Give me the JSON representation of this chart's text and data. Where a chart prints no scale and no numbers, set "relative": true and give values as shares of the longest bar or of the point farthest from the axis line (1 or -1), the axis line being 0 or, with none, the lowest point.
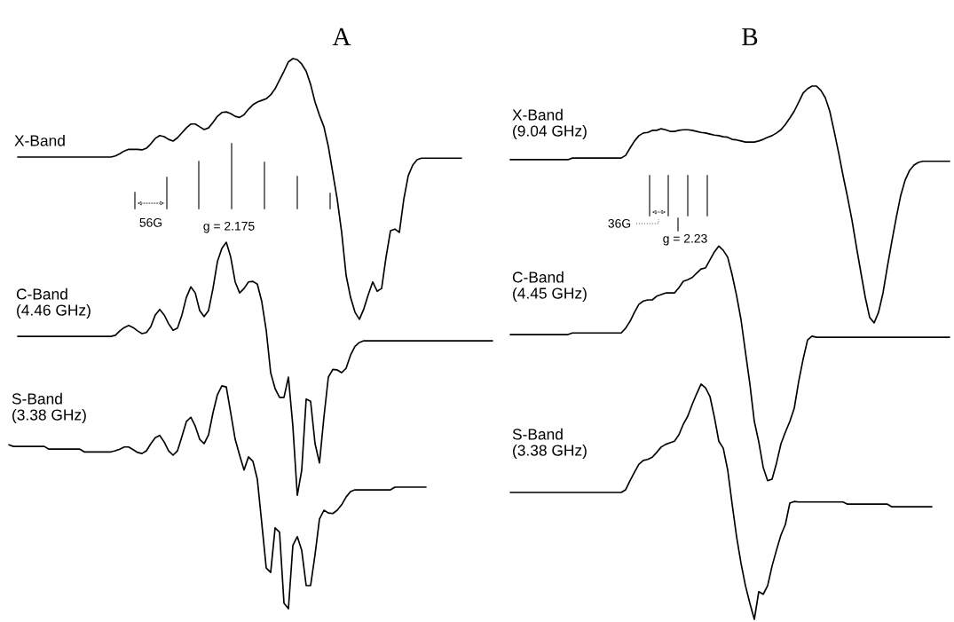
{
  "chart_data": [
    {
      "type": "line",
      "title": "A",
      "relative": true,
      "categories": [
        null,
        null,
        null,
        null,
        null,
        null,
        null,
        null,
        null,
        null,
        null,
        null,
        null,
        null,
        null,
        null,
        null,
        null,
        null,
        null,
        null,
        null,
        null,
        null,
        null,
        null,
        null,
        null,
        null,
        null,
        null,
        null,
        null,
        null,
        null,
        null,
        null,
        null,
        null,
        null,
        null,
        null,
        null,
        null,
        null,
        null,
        null,
        null,
        null,
        null,
        null,
        null,
        null,
        null,
        null,
        null,
        null,
        null,
        null,
        null,
        null,
        null,
        null,
        null,
        null,
        null,
        null,
        null,
        null,
        null,
        null,
        null,
        null,
        null,
        null,
        null,
        null,
        null,
        null,
        null,
        null,
        null,
        null,
        null,
        null,
        null,
        null,
        null,
        null,
        null,
        null,
        null,
        null,
        null,
        null,
        null,
        null,
        null,
        null,
        null,
        null,
        null,
        null,
        null,
        null,
        null,
        null,
        null,
        null,
        null
      ],
      "series": [
        {
          "name": "X-Band",
          "color": "#000000",
          "values": [
            null,
            null,
            0.821,
            0.821,
            0.821,
            0.821,
            0.821,
            0.821,
            0.821,
            0.821,
            0.821,
            0.821,
            0.821,
            0.821,
            0.821,
            0.821,
            0.821,
            0.821,
            0.821,
            0.821,
            0.821,
            0.821,
            0.821,
            0.821,
            0.823,
            0.827,
            0.832,
            0.835,
            0.835,
            0.835,
            0.834,
            0.837,
            0.845,
            0.855,
            0.86,
            0.858,
            0.853,
            0.85,
            0.856,
            0.865,
            0.874,
            0.881,
            0.881,
            0.876,
            0.871,
            0.874,
            0.884,
            0.895,
            0.902,
            0.903,
            0.9,
            0.895,
            0.893,
            0.898,
            0.908,
            0.916,
            0.921,
            0.924,
            0.927,
            0.934,
            0.945,
            0.961,
            0.977,
            0.994,
            1.0,
            0.998,
            0.99,
            0.977,
            0.953,
            0.921,
            0.897,
            0.876,
            0.84,
            0.792,
            0.744,
            0.684,
            0.606,
            0.566,
            0.539,
            0.526,
            0.545,
            0.571,
            0.594,
            0.577,
            0.582,
            0.639,
            0.687,
            0.69,
            0.684,
            0.744,
            0.787,
            0.806,
            0.816,
            0.819,
            0.819,
            0.819,
            0.819,
            0.819,
            0.819,
            0.819,
            0.819,
            0.819,
            0.819,
            null,
            null,
            null,
            null,
            null,
            null,
            null
          ]
        },
        {
          "name": "C-Band\n(4.46 GHz)",
          "color": "#000000",
          "values": [
            null,
            null,
            0.495,
            0.495,
            0.495,
            0.495,
            0.495,
            0.495,
            0.495,
            0.495,
            0.495,
            0.495,
            0.495,
            0.495,
            0.495,
            0.495,
            0.495,
            0.495,
            0.495,
            0.495,
            0.495,
            0.495,
            0.495,
            0.495,
            0.497,
            0.505,
            0.511,
            0.515,
            0.511,
            0.505,
            0.5,
            0.502,
            0.513,
            0.534,
            0.544,
            0.534,
            0.518,
            0.506,
            0.51,
            0.534,
            0.566,
            0.585,
            0.574,
            0.542,
            0.531,
            0.542,
            0.582,
            0.631,
            0.655,
            0.666,
            0.639,
            0.594,
            0.574,
            0.582,
            0.594,
            0.595,
            0.59,
            0.558,
            0.506,
            0.429,
            0.4,
            0.384,
            0.384,
            0.421,
            0.332,
            0.206,
            0.252,
            0.381,
            0.377,
            0.3,
            0.265,
            0.348,
            0.421,
            0.435,
            0.434,
            0.429,
            0.437,
            0.461,
            0.477,
            0.484,
            0.487,
            0.487,
            0.487,
            0.487,
            0.487,
            0.487,
            0.487,
            0.487,
            0.487,
            0.487,
            0.487,
            0.487,
            0.487,
            0.487,
            0.487,
            0.487,
            0.487,
            0.487,
            0.487,
            0.487,
            0.487,
            0.487,
            0.487,
            0.487,
            0.487,
            0.487,
            0.487,
            0.487,
            0.487,
            0.487
          ]
        },
        {
          "name": "S-Band\n(3.38 GHz)",
          "color": "#000000",
          "values": [
            0.298,
            0.295,
            0.295,
            0.295,
            0.295,
            0.295,
            0.295,
            0.295,
            0.295,
            0.29,
            0.29,
            0.29,
            0.29,
            0.29,
            0.29,
            0.29,
            0.29,
            0.285,
            0.285,
            0.285,
            0.285,
            0.285,
            0.285,
            0.285,
            0.287,
            0.29,
            0.294,
            0.294,
            0.289,
            0.284,
            0.282,
            0.287,
            0.3,
            0.311,
            0.315,
            0.303,
            0.287,
            0.279,
            0.287,
            0.313,
            0.34,
            0.348,
            0.332,
            0.308,
            0.3,
            0.316,
            0.356,
            0.389,
            0.405,
            0.403,
            0.356,
            0.308,
            0.279,
            0.252,
            0.276,
            0.268,
            0.235,
            0.155,
            0.074,
            0.066,
            0.147,
            0.139,
            0.01,
            0.0,
            0.115,
            0.131,
            0.106,
            0.042,
            0.042,
            0.098,
            0.163,
            0.179,
            0.174,
            0.173,
            0.179,
            0.189,
            0.203,
            0.213,
            0.216,
            0.216,
            0.216,
            0.216,
            0.216,
            0.216,
            0.216,
            0.216,
            0.216,
            0.221,
            0.221,
            0.221,
            0.221,
            0.221,
            0.221,
            0.221,
            0.221,
            null,
            null,
            null,
            null,
            null,
            null,
            null,
            null,
            null,
            null,
            null,
            null,
            null,
            null,
            null
          ]
        }
      ],
      "annotations": [
        "56G",
        "g = 2.175"
      ]
    },
    {
      "type": "line",
      "title": "B",
      "relative": true,
      "categories": [
        null,
        null,
        null,
        null,
        null,
        null,
        null,
        null,
        null,
        null,
        null,
        null,
        null,
        null,
        null,
        null,
        null,
        null,
        null,
        null,
        null,
        null,
        null,
        null,
        null,
        null,
        null,
        null,
        null,
        null,
        null,
        null,
        null,
        null,
        null,
        null,
        null,
        null,
        null,
        null,
        null,
        null,
        null,
        null,
        null,
        null,
        null,
        null,
        null,
        null,
        null,
        null,
        null,
        null,
        null,
        null,
        null,
        null,
        null,
        null,
        null,
        null,
        null,
        null,
        null,
        null,
        null,
        null,
        null,
        null,
        null,
        null,
        null,
        null,
        null,
        null,
        null,
        null,
        null,
        null,
        null,
        null,
        null,
        null,
        null,
        null,
        null,
        null,
        null,
        null,
        null,
        null,
        null,
        null,
        null,
        null,
        null,
        null,
        null,
        null
      ],
      "series": [
        {
          "name": "X-Band\n(9.04 GHz)",
          "color": "#000000",
          "values": [
            0.862,
            0.862,
            0.862,
            0.862,
            0.862,
            0.862,
            0.862,
            0.862,
            0.862,
            0.862,
            0.862,
            0.862,
            0.862,
            0.862,
            0.865,
            0.865,
            0.865,
            0.865,
            0.865,
            0.865,
            0.865,
            0.865,
            0.865,
            0.865,
            0.865,
            0.865,
            0.87,
            0.884,
            0.897,
            0.907,
            0.912,
            0.913,
            0.917,
            0.917,
            0.92,
            0.918,
            0.915,
            0.915,
            0.917,
            0.918,
            0.918,
            0.917,
            0.915,
            0.913,
            0.912,
            0.91,
            0.908,
            0.907,
            0.905,
            0.904,
            0.9,
            0.899,
            0.897,
            0.895,
            0.895,
            0.895,
            0.897,
            0.9,
            0.904,
            0.907,
            0.912,
            0.918,
            0.928,
            0.94,
            0.953,
            0.97,
            0.987,
            0.995,
            1.0,
            1.0,
            0.992,
            0.978,
            0.953,
            0.915,
            0.875,
            0.832,
            0.792,
            0.749,
            0.699,
            0.651,
            0.604,
            0.566,
            0.556,
            0.576,
            0.612,
            0.662,
            0.709,
            0.754,
            0.795,
            0.824,
            0.842,
            0.852,
            0.857,
            0.859,
            0.859,
            0.859,
            0.859,
            0.859,
            0.859,
            0.859
          ]
        },
        {
          "name": "C-Band\n(4.45 GHz)",
          "color": "#000000",
          "values": [
            0.534,
            0.534,
            0.534,
            0.534,
            0.534,
            0.534,
            0.534,
            0.534,
            0.534,
            0.534,
            0.534,
            0.534,
            0.534,
            0.534,
            0.537,
            0.537,
            0.537,
            0.537,
            0.537,
            0.537,
            0.537,
            0.537,
            0.537,
            0.537,
            0.537,
            0.537,
            0.546,
            0.559,
            0.576,
            0.591,
            0.597,
            0.599,
            0.599,
            0.606,
            0.609,
            0.612,
            0.612,
            0.612,
            0.622,
            0.634,
            0.637,
            0.641,
            0.649,
            0.657,
            0.659,
            0.674,
            0.689,
            0.7,
            0.692,
            0.679,
            0.646,
            0.607,
            0.562,
            0.501,
            0.441,
            0.371,
            0.333,
            0.285,
            0.26,
            0.263,
            0.293,
            0.329,
            0.351,
            0.371,
            0.396,
            0.446,
            0.488,
            0.524,
            0.531,
            0.529,
            0.529,
            0.529,
            0.529,
            0.529,
            0.529,
            0.529,
            0.529,
            0.529,
            0.529,
            0.529,
            0.529,
            0.529,
            0.529,
            0.529,
            0.529,
            0.529,
            0.529,
            0.529,
            0.529,
            0.529,
            0.529,
            0.529,
            0.529,
            0.529,
            0.529,
            0.529,
            0.529,
            0.529,
            0.529,
            0.529
          ]
        },
        {
          "name": "S-Band\n(3.38 GHz)",
          "color": "#000000",
          "values": [
            0.238,
            0.238,
            0.238,
            0.238,
            0.238,
            0.238,
            0.238,
            0.238,
            0.238,
            0.238,
            0.238,
            0.238,
            0.238,
            0.238,
            0.238,
            0.238,
            0.238,
            0.238,
            0.238,
            0.238,
            0.238,
            0.238,
            0.238,
            0.238,
            0.238,
            0.238,
            0.243,
            0.26,
            0.276,
            0.291,
            0.298,
            0.3,
            0.304,
            0.313,
            0.323,
            0.328,
            0.331,
            0.334,
            0.346,
            0.366,
            0.381,
            0.403,
            0.423,
            0.441,
            0.434,
            0.418,
            0.379,
            0.334,
            0.321,
            0.28,
            0.216,
            0.155,
            0.105,
            0.063,
            0.03,
            0.0,
            0.052,
            0.047,
            0.063,
            0.1,
            0.13,
            0.158,
            0.178,
            0.218,
            0.221,
            0.22,
            0.22,
            0.22,
            0.22,
            0.22,
            0.22,
            0.22,
            0.22,
            0.22,
            0.22,
            0.22,
            0.216,
            0.216,
            0.216,
            0.216,
            0.216,
            0.216,
            0.216,
            0.216,
            0.216,
            0.216,
            0.211,
            0.211,
            0.211,
            0.211,
            0.211,
            0.211,
            0.211,
            0.211,
            0.211,
            0.211,
            null,
            null,
            null,
            null
          ]
        }
      ],
      "annotations": [
        "36G",
        "g = 2.23"
      ]
    }
  ]
}
